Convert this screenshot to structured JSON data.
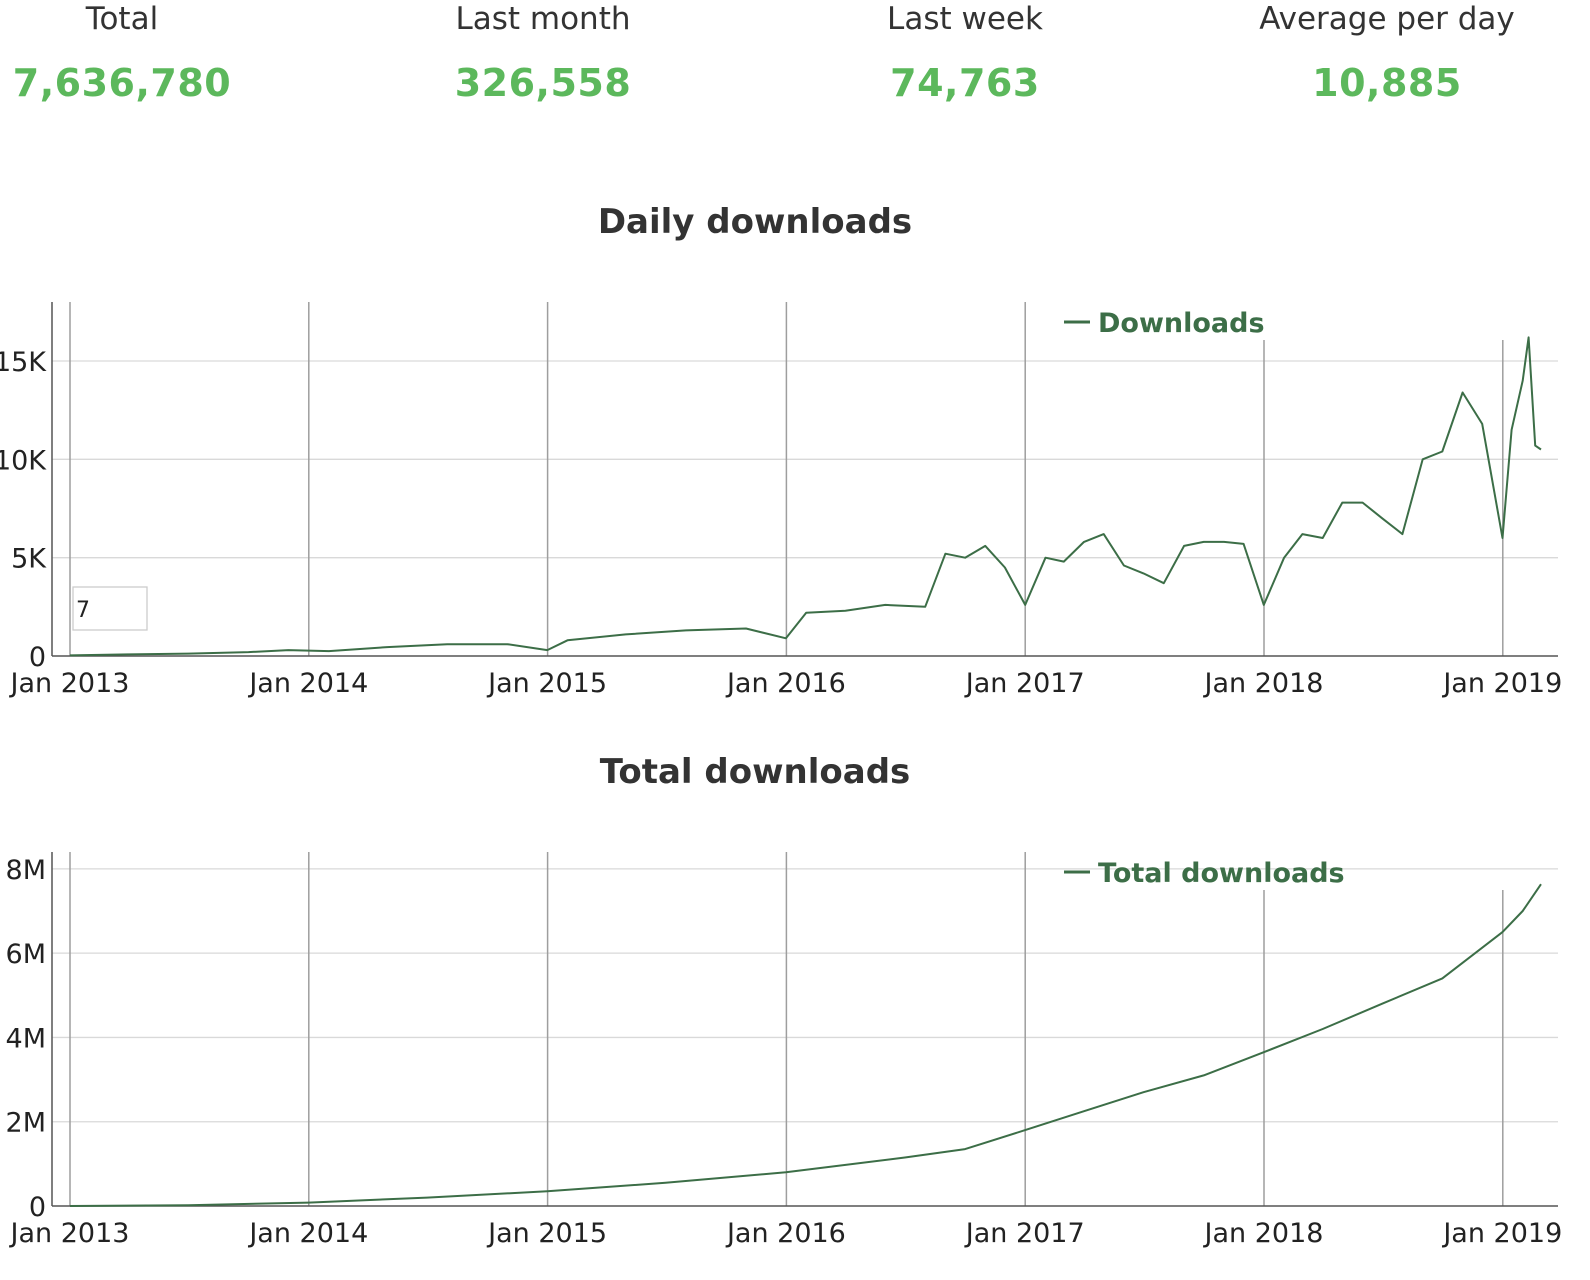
{
  "stats": [
    {
      "label": "Total",
      "value": "7,636,780"
    },
    {
      "label": "Last month",
      "value": "326,558"
    },
    {
      "label": "Last week",
      "value": "74,763"
    },
    {
      "label": "Average per day",
      "value": "10,885"
    }
  ],
  "colors": {
    "accent": "#5cb85c",
    "series": "#3c6e47"
  },
  "chart_data": [
    {
      "type": "line",
      "title": "Daily downloads",
      "xlabel": "",
      "ylabel": "",
      "legend_position": "top-right",
      "grid": true,
      "x_tick_labels": [
        "Jan 2013",
        "Jan 2014",
        "Jan 2015",
        "Jan 2016",
        "Jan 2017",
        "Jan 2018",
        "Jan 2019"
      ],
      "y_ticks": [
        0,
        5000,
        10000,
        15000
      ],
      "y_tick_labels": [
        "0",
        "5K",
        "10K",
        "15K"
      ],
      "ylim": [
        0,
        18000
      ],
      "xlim": [
        "2013-01-01",
        "2019-03-01"
      ],
      "tooltip": {
        "text": "7"
      },
      "series": [
        {
          "name": "Downloads",
          "x": [
            "2013-01-01",
            "2013-04-01",
            "2013-07-01",
            "2013-10-01",
            "2013-12-01",
            "2014-02-01",
            "2014-05-01",
            "2014-08-01",
            "2014-11-01",
            "2015-01-01",
            "2015-02-01",
            "2015-05-01",
            "2015-08-01",
            "2015-11-01",
            "2016-01-01",
            "2016-02-01",
            "2016-04-01",
            "2016-06-01",
            "2016-08-01",
            "2016-09-01",
            "2016-10-01",
            "2016-11-01",
            "2016-12-01",
            "2017-01-01",
            "2017-02-01",
            "2017-03-01",
            "2017-04-01",
            "2017-05-01",
            "2017-06-01",
            "2017-07-01",
            "2017-08-01",
            "2017-09-01",
            "2017-10-01",
            "2017-11-01",
            "2017-12-01",
            "2018-01-01",
            "2018-02-01",
            "2018-03-01",
            "2018-04-01",
            "2018-05-01",
            "2018-06-01",
            "2018-07-01",
            "2018-08-01",
            "2018-09-01",
            "2018-10-01",
            "2018-11-01",
            "2018-12-01",
            "2019-01-01",
            "2019-01-15",
            "2019-02-01",
            "2019-02-10",
            "2019-02-20",
            "2019-03-01"
          ],
          "values": [
            30,
            80,
            120,
            200,
            300,
            250,
            450,
            600,
            600,
            300,
            800,
            1100,
            1300,
            1400,
            900,
            2200,
            2300,
            2600,
            2500,
            5200,
            5000,
            5600,
            4500,
            2600,
            5000,
            4800,
            5800,
            6200,
            4600,
            4200,
            3700,
            5600,
            5800,
            5800,
            5700,
            2600,
            5000,
            6200,
            6000,
            7800,
            7800,
            7000,
            6200,
            10000,
            10400,
            13400,
            11800,
            6000,
            11500,
            14000,
            16200,
            10700,
            10500
          ]
        }
      ]
    },
    {
      "type": "line",
      "title": "Total downloads",
      "xlabel": "",
      "ylabel": "",
      "legend_position": "top-right",
      "grid": true,
      "x_tick_labels": [
        "Jan 2013",
        "Jan 2014",
        "Jan 2015",
        "Jan 2016",
        "Jan 2017",
        "Jan 2018",
        "Jan 2019"
      ],
      "y_ticks": [
        0,
        2000000,
        4000000,
        6000000,
        8000000
      ],
      "y_tick_labels": [
        "0",
        "2M",
        "4M",
        "6M",
        "8M"
      ],
      "ylim": [
        0,
        8400000
      ],
      "xlim": [
        "2013-01-01",
        "2019-03-01"
      ],
      "series": [
        {
          "name": "Total downloads",
          "x": [
            "2013-01-01",
            "2013-07-01",
            "2014-01-01",
            "2014-07-01",
            "2015-01-01",
            "2015-07-01",
            "2016-01-01",
            "2016-07-01",
            "2016-10-01",
            "2017-01-01",
            "2017-04-01",
            "2017-07-01",
            "2017-10-01",
            "2018-01-01",
            "2018-04-01",
            "2018-07-01",
            "2018-10-01",
            "2019-01-01",
            "2019-02-01",
            "2019-03-01"
          ],
          "values": [
            0,
            20000,
            80000,
            200000,
            350000,
            550000,
            800000,
            1150000,
            1350000,
            1800000,
            2250000,
            2700000,
            3100000,
            3650000,
            4200000,
            4800000,
            5400000,
            6500000,
            7000000,
            7636780
          ]
        }
      ]
    }
  ]
}
